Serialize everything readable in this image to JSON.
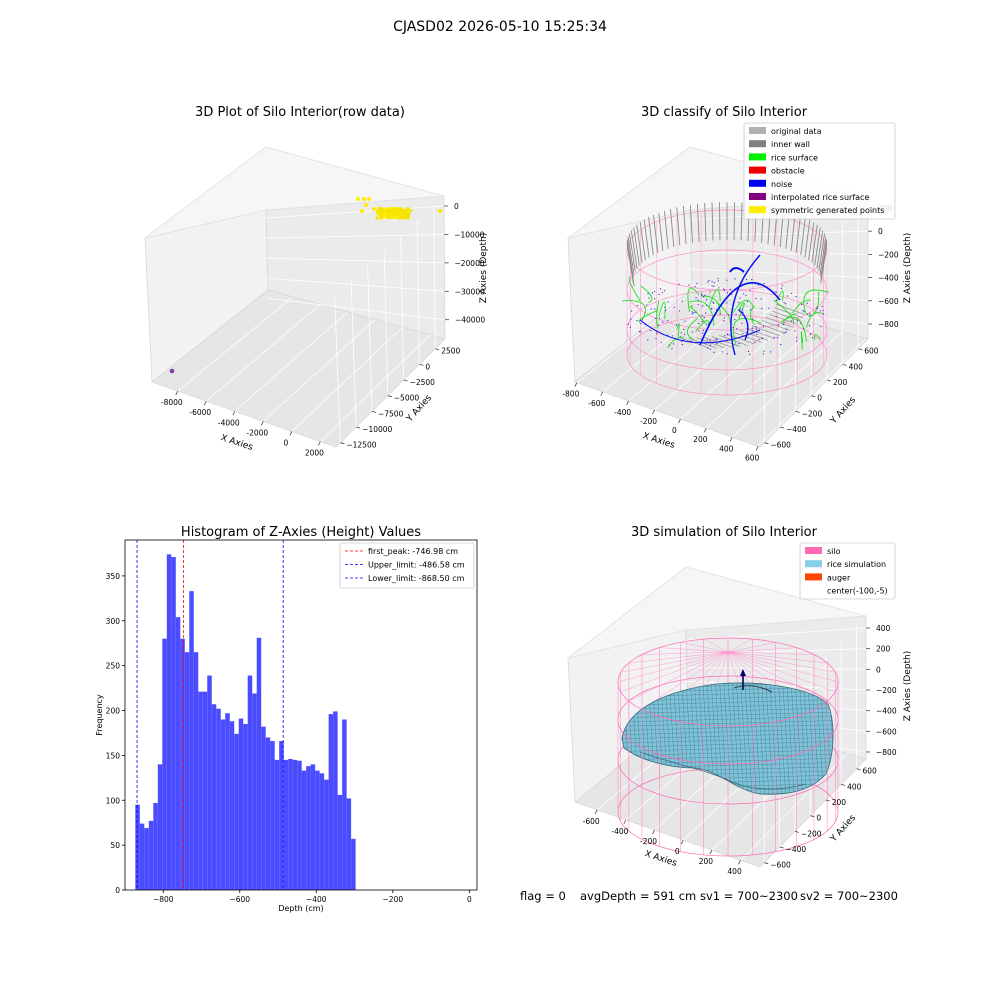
{
  "suptitle": "CJASD02 2026-05-10 15:25:34",
  "footer": {
    "flag": "flag = 0",
    "avg_depth": "avgDepth = 591 cm",
    "sv1": "sv1 = 700~2300",
    "sv2": "sv2 = 700~2300"
  },
  "chart_data": [
    {
      "type": "scatter",
      "title": "3D Plot of Silo Interior(row data)",
      "xlabel": "X Axies",
      "ylabel": "Y Axies",
      "zlabel": "Z Axies (Depth)",
      "x_ticks": [
        "-8000",
        "-6000",
        "-4000",
        "-2000",
        "0",
        "2000"
      ],
      "y_ticks": [
        "2500",
        "0",
        "−2500",
        "−5000",
        "−7500",
        "−10000",
        "−12500"
      ],
      "z_ticks": [
        "0",
        "−10000",
        "−20000",
        "−30000",
        "−40000"
      ],
      "points": [
        {
          "x": -9000,
          "y": -12500,
          "z": -42000,
          "color": "#8040a0"
        },
        {
          "x": -500,
          "y": 0,
          "z": -500,
          "color": "#ffee00"
        },
        {
          "x": -300,
          "y": 200,
          "z": -800,
          "color": "#ffee00"
        },
        {
          "x": 500,
          "y": 400,
          "z": -600,
          "color": "#ffee00"
        }
      ]
    },
    {
      "type": "scatter",
      "title": "3D classify of Silo Interior",
      "xlabel": "X Axies",
      "ylabel": "Y Axies",
      "zlabel": "Z Axies (Depth)",
      "x_ticks": [
        "-800",
        "-600",
        "-400",
        "-200",
        "0",
        "200",
        "400",
        "600"
      ],
      "y_ticks": [
        "600",
        "400",
        "200",
        "0",
        "−200",
        "−400",
        "−600"
      ],
      "z_ticks": [
        "200",
        "0",
        "−200",
        "−400",
        "−600",
        "−800"
      ],
      "legend": [
        {
          "label": "original data",
          "color": "#b0b0b0"
        },
        {
          "label": "inner wall",
          "color": "#808080"
        },
        {
          "label": "rice surface",
          "color": "#00ee00"
        },
        {
          "label": "obstacle",
          "color": "#ee0000"
        },
        {
          "label": "noise",
          "color": "#0000ee"
        },
        {
          "label": "interpolated rice surface",
          "color": "#800080"
        },
        {
          "label": "symmetric generated points",
          "color": "#ffee00"
        }
      ],
      "legend_position": "top-right"
    },
    {
      "type": "bar",
      "title": "Histogram of Z-Axies (Height) Values",
      "xlabel": "Depth (cm)",
      "ylabel": "Frequency",
      "bar_color": "#4b4bff",
      "bin_start": -873,
      "bin_width": 11.75,
      "values": [
        95,
        74,
        69,
        77,
        97,
        140,
        280,
        374,
        371,
        304,
        280,
        265,
        333,
        265,
        221,
        221,
        239,
        207,
        202,
        190,
        197,
        188,
        174,
        191,
        185,
        239,
        219,
        281,
        182,
        170,
        166,
        145,
        166,
        145,
        146,
        145,
        144,
        133,
        138,
        140,
        133,
        130,
        123,
        196,
        199,
        106,
        190,
        102,
        57
      ],
      "xlim": [
        -900,
        20
      ],
      "ylim": [
        0,
        390
      ],
      "x_ticks": [
        -800,
        -600,
        -400,
        -200,
        0
      ],
      "y_ticks": [
        0,
        50,
        100,
        150,
        200,
        250,
        300,
        350
      ],
      "vlines": [
        {
          "x": -746.98,
          "color": "#ff0000",
          "label": "first_peak: -746.98 cm"
        },
        {
          "x": -486.58,
          "color": "#0000ff",
          "label": "Upper_limit: -486.58 cm"
        },
        {
          "x": -868.5,
          "color": "#0000ff",
          "label": "Lower_limit: -868.50 cm"
        }
      ],
      "legend_position": "top-right"
    },
    {
      "type": "surface",
      "title": "3D simulation of Silo Interior",
      "xlabel": "X Axies",
      "ylabel": "Y Axies",
      "zlabel": "Z Axies (Depth)",
      "x_ticks": [
        "-600",
        "-400",
        "-200",
        "0",
        "200",
        "400"
      ],
      "y_ticks": [
        "600",
        "400",
        "200",
        "0",
        "−200",
        "−400",
        "−600"
      ],
      "z_ticks": [
        "400",
        "200",
        "0",
        "−200",
        "−400",
        "−600",
        "−800"
      ],
      "legend": [
        {
          "label": "silo",
          "color": "#ff69b4"
        },
        {
          "label": "rice simulation",
          "color": "#87ceeb"
        },
        {
          "label": "auger",
          "color": "#ff4500"
        },
        {
          "label": "center(-100,-5)",
          "color": ""
        }
      ],
      "legend_position": "top-right"
    }
  ]
}
